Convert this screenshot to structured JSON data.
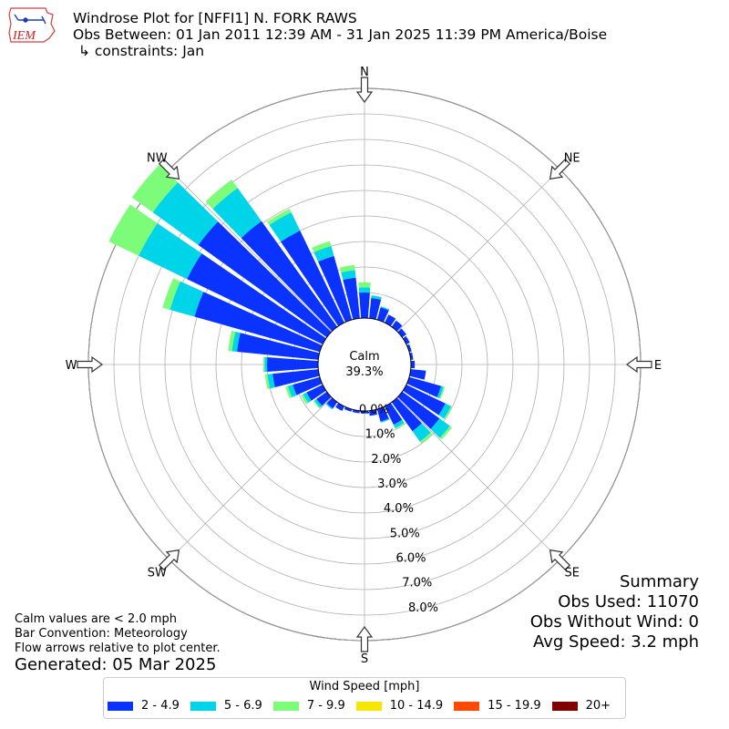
{
  "header": {
    "logo_text": "IEM",
    "title_line1": "Windrose Plot for [NFFI1] N. FORK RAWS",
    "title_line2": "Obs Between: 01 Jan 2011 12:39 AM - 31 Jan 2025 11:39 PM America/Boise",
    "title_line3": "↳ constraints: Jan"
  },
  "summary": {
    "heading": "Summary",
    "obs_used": "Obs Used: 11070",
    "obs_without_wind": "Obs Without Wind: 0",
    "avg_speed": "Avg Speed: 3.2 mph"
  },
  "notes": {
    "calm_note": "Calm values are < 2.0 mph",
    "bar_convention": "Bar Convention: Meteorology",
    "flow_arrows": "Flow arrows relative to plot center.",
    "generated": "Generated: 05 Mar 2025"
  },
  "legend": {
    "title": "Wind Speed [mph]",
    "items": [
      {
        "label": "2 - 4.9",
        "color": "#0a33ff"
      },
      {
        "label": "5 - 6.9",
        "color": "#00d4e8"
      },
      {
        "label": "7 - 9.9",
        "color": "#7dfc7a"
      },
      {
        "label": "10 - 14.9",
        "color": "#f7e700"
      },
      {
        "label": "15 - 19.9",
        "color": "#ff4a00"
      },
      {
        "label": "20+",
        "color": "#800000"
      }
    ]
  },
  "chart_data": {
    "type": "windrose",
    "calm": {
      "label": "Calm",
      "value_label": "39.3%",
      "value": 39.3
    },
    "compass_labels": [
      "N",
      "NE",
      "E",
      "SE",
      "S",
      "SW",
      "W",
      "NW"
    ],
    "radial_tick_labels": [
      "0.0%",
      "1.0%",
      "2.0%",
      "3.0%",
      "4.0%",
      "5.0%",
      "6.0%",
      "7.0%",
      "8.0%"
    ],
    "radial_max": 9,
    "grid": true,
    "series_names": [
      "2 - 4.9",
      "5 - 6.9",
      "7 - 9.9",
      "10 - 14.9",
      "15 - 19.9",
      "20+"
    ],
    "bins": [
      {
        "direction": 0,
        "values": [
          1.0,
          0.2,
          0.2
        ]
      },
      {
        "direction": 10,
        "values": [
          0.8,
          0.1,
          0.0
        ]
      },
      {
        "direction": 20,
        "values": [
          0.5,
          0.05,
          0.0
        ]
      },
      {
        "direction": 30,
        "values": [
          0.35,
          0.0,
          0.0
        ]
      },
      {
        "direction": 40,
        "values": [
          0.3,
          0.0,
          0.0
        ]
      },
      {
        "direction": 50,
        "values": [
          0.2,
          0.0,
          0.0
        ]
      },
      {
        "direction": 60,
        "values": [
          0.15,
          0.0,
          0.0
        ]
      },
      {
        "direction": 70,
        "values": [
          0.1,
          0.0,
          0.0
        ]
      },
      {
        "direction": 80,
        "values": [
          0.1,
          0.0,
          0.0
        ]
      },
      {
        "direction": 90,
        "values": [
          0.15,
          0.0,
          0.0
        ]
      },
      {
        "direction": 100,
        "values": [
          0.6,
          0.0,
          0.0
        ]
      },
      {
        "direction": 110,
        "values": [
          1.3,
          0.1,
          0.05
        ]
      },
      {
        "direction": 120,
        "values": [
          1.7,
          0.25,
          0.05
        ]
      },
      {
        "direction": 130,
        "values": [
          1.8,
          0.5,
          0.1
        ]
      },
      {
        "direction": 140,
        "values": [
          1.4,
          0.5,
          0.1
        ]
      },
      {
        "direction": 150,
        "values": [
          0.8,
          0.15,
          0.05
        ]
      },
      {
        "direction": 160,
        "values": [
          0.5,
          0.05,
          0.0
        ]
      },
      {
        "direction": 170,
        "values": [
          0.2,
          0.0,
          0.0
        ]
      },
      {
        "direction": 180,
        "values": [
          0.1,
          0.0,
          0.0
        ]
      },
      {
        "direction": 190,
        "values": [
          0.1,
          0.0,
          0.0
        ]
      },
      {
        "direction": 200,
        "values": [
          0.1,
          0.0,
          0.0
        ]
      },
      {
        "direction": 210,
        "values": [
          0.2,
          0.0,
          0.0
        ]
      },
      {
        "direction": 220,
        "values": [
          0.3,
          0.05,
          0.0
        ]
      },
      {
        "direction": 230,
        "values": [
          0.5,
          0.1,
          0.05
        ]
      },
      {
        "direction": 240,
        "values": [
          0.7,
          0.15,
          0.1
        ]
      },
      {
        "direction": 250,
        "values": [
          1.1,
          0.2,
          0.1
        ]
      },
      {
        "direction": 260,
        "values": [
          1.8,
          0.2,
          0.1
        ]
      },
      {
        "direction": 270,
        "values": [
          2.0,
          0.1,
          0.05
        ]
      },
      {
        "direction": 280,
        "values": [
          3.2,
          0.2,
          0.15
        ]
      },
      {
        "direction": 290,
        "values": [
          5.1,
          1.0,
          0.3
        ]
      },
      {
        "direction": 300,
        "values": [
          5.9,
          2.1,
          1.3
        ]
      },
      {
        "direction": 310,
        "values": [
          6.2,
          2.2,
          1.0
        ]
      },
      {
        "direction": 320,
        "values": [
          5.1,
          1.6,
          0.4
        ]
      },
      {
        "direction": 330,
        "values": [
          4.0,
          0.8,
          0.15
        ]
      },
      {
        "direction": 340,
        "values": [
          2.6,
          0.4,
          0.2
        ]
      },
      {
        "direction": 350,
        "values": [
          1.6,
          0.3,
          0.2
        ]
      }
    ]
  }
}
